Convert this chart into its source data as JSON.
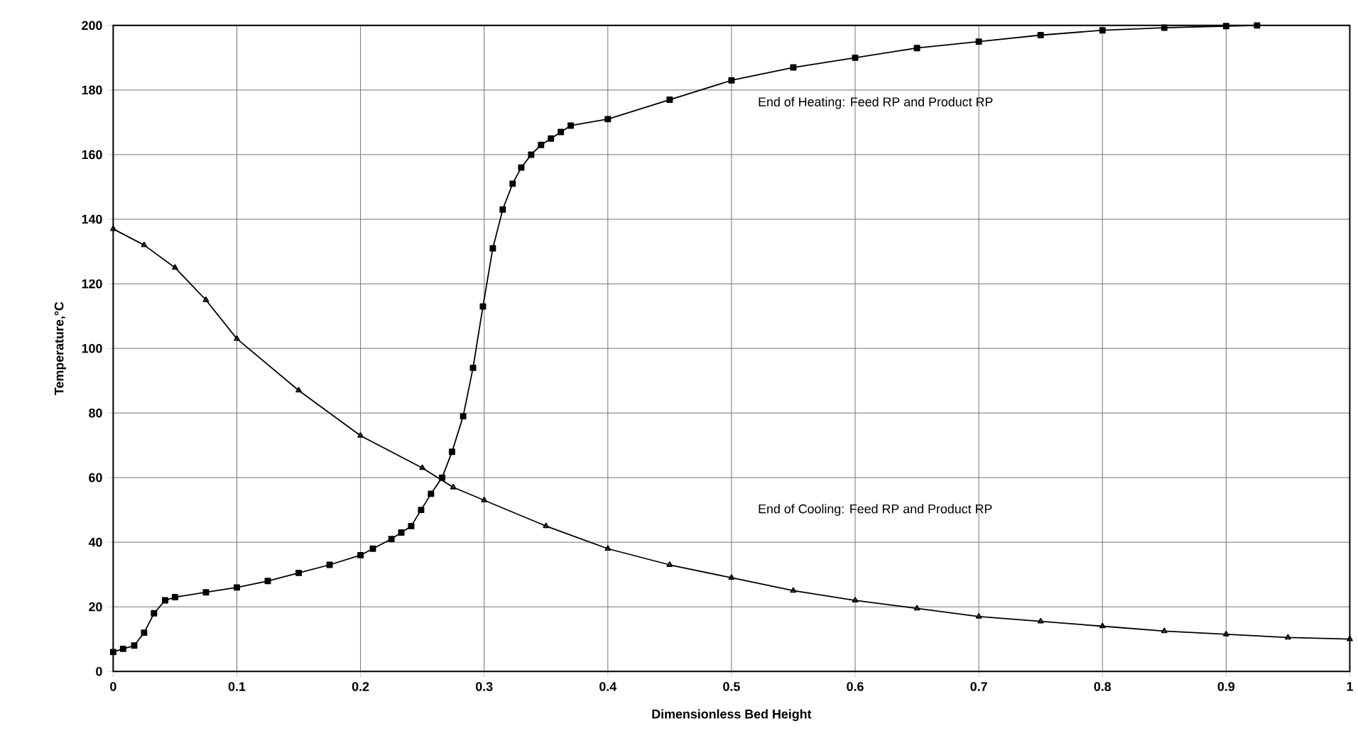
{
  "chart_data": {
    "type": "line",
    "xlabel": "Dimensionless Bed Height",
    "ylabel": "Temperature,°C",
    "xlim": [
      0,
      1
    ],
    "ylim": [
      0,
      200
    ],
    "xticks": [
      0,
      0.1,
      0.2,
      0.3,
      0.4,
      0.5,
      0.6,
      0.7,
      0.8,
      0.9,
      1
    ],
    "yticks": [
      0,
      20,
      40,
      60,
      80,
      100,
      120,
      140,
      160,
      180,
      200
    ],
    "grid": true,
    "annotations": [
      "End of Heating: Feed RP and Product RP",
      "End of Cooling: Feed RP and Product RP"
    ],
    "series": [
      {
        "color": "#000000",
        "marker": "square",
        "x": [
          0,
          0.008,
          0.017,
          0.025,
          0.033,
          0.042,
          0.05,
          0.075,
          0.1,
          0.125,
          0.15,
          0.175,
          0.2,
          0.21,
          0.225,
          0.233,
          0.241,
          0.249,
          0.257,
          0.266,
          0.274,
          0.283,
          0.291,
          0.299,
          0.307,
          0.315,
          0.323,
          0.33,
          0.338,
          0.346,
          0.354,
          0.362,
          0.37,
          0.4,
          0.45,
          0.5,
          0.55,
          0.6,
          0.65,
          0.7,
          0.75,
          0.8,
          0.85,
          0.9,
          0.925
        ],
        "values": [
          6,
          7,
          8,
          12,
          18,
          22,
          23,
          24.5,
          26,
          28,
          30.5,
          33,
          36,
          38,
          41,
          43,
          45,
          50,
          55,
          60,
          68,
          79,
          94,
          113,
          131,
          143,
          151,
          156,
          160,
          163,
          165,
          167,
          169,
          171,
          177,
          183,
          187,
          190,
          193,
          195,
          197,
          198.5,
          199.3,
          199.8,
          200
        ]
      },
      {
        "color": "#000000",
        "marker": "triangle",
        "x": [
          0,
          0.025,
          0.05,
          0.075,
          0.1,
          0.15,
          0.2,
          0.25,
          0.275,
          0.3,
          0.35,
          0.4,
          0.45,
          0.5,
          0.55,
          0.6,
          0.65,
          0.7,
          0.75,
          0.8,
          0.85,
          0.9,
          0.95,
          1
        ],
        "values": [
          137,
          132,
          125,
          115,
          103,
          87,
          73,
          63,
          57,
          53,
          45,
          38,
          33,
          29,
          25,
          22,
          19.5,
          17,
          15.5,
          14,
          12.5,
          11.5,
          10.5,
          10
        ]
      }
    ]
  }
}
